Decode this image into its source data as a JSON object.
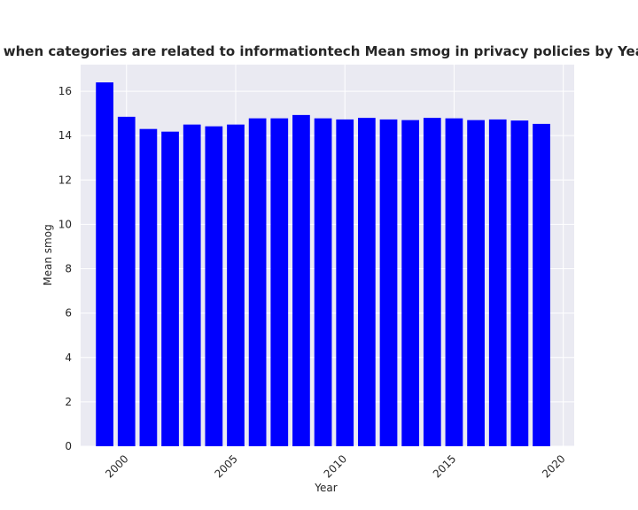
{
  "chart_data": {
    "type": "bar",
    "title": "when categories are related to informationtech Mean smog in privacy policies by Year",
    "xlabel": "Year",
    "ylabel": "Mean smog",
    "x": [
      1999,
      2000,
      2001,
      2002,
      2003,
      2004,
      2005,
      2006,
      2007,
      2008,
      2009,
      2010,
      2011,
      2012,
      2013,
      2014,
      2015,
      2016,
      2017,
      2018,
      2019
    ],
    "values": [
      16.4,
      14.85,
      14.3,
      14.18,
      14.5,
      14.42,
      14.5,
      14.78,
      14.78,
      14.93,
      14.78,
      14.73,
      14.8,
      14.73,
      14.7,
      14.8,
      14.78,
      14.7,
      14.73,
      14.68,
      14.53
    ],
    "xlim": [
      1997.9,
      2020.5
    ],
    "ylim": [
      0,
      17.2
    ],
    "xticks": [
      2000,
      2005,
      2010,
      2015,
      2020
    ],
    "yticks": [
      0,
      2,
      4,
      6,
      8,
      10,
      12,
      14,
      16
    ],
    "bar_color": "#0000ff",
    "background_color": "#eaeaf2",
    "grid": true
  }
}
